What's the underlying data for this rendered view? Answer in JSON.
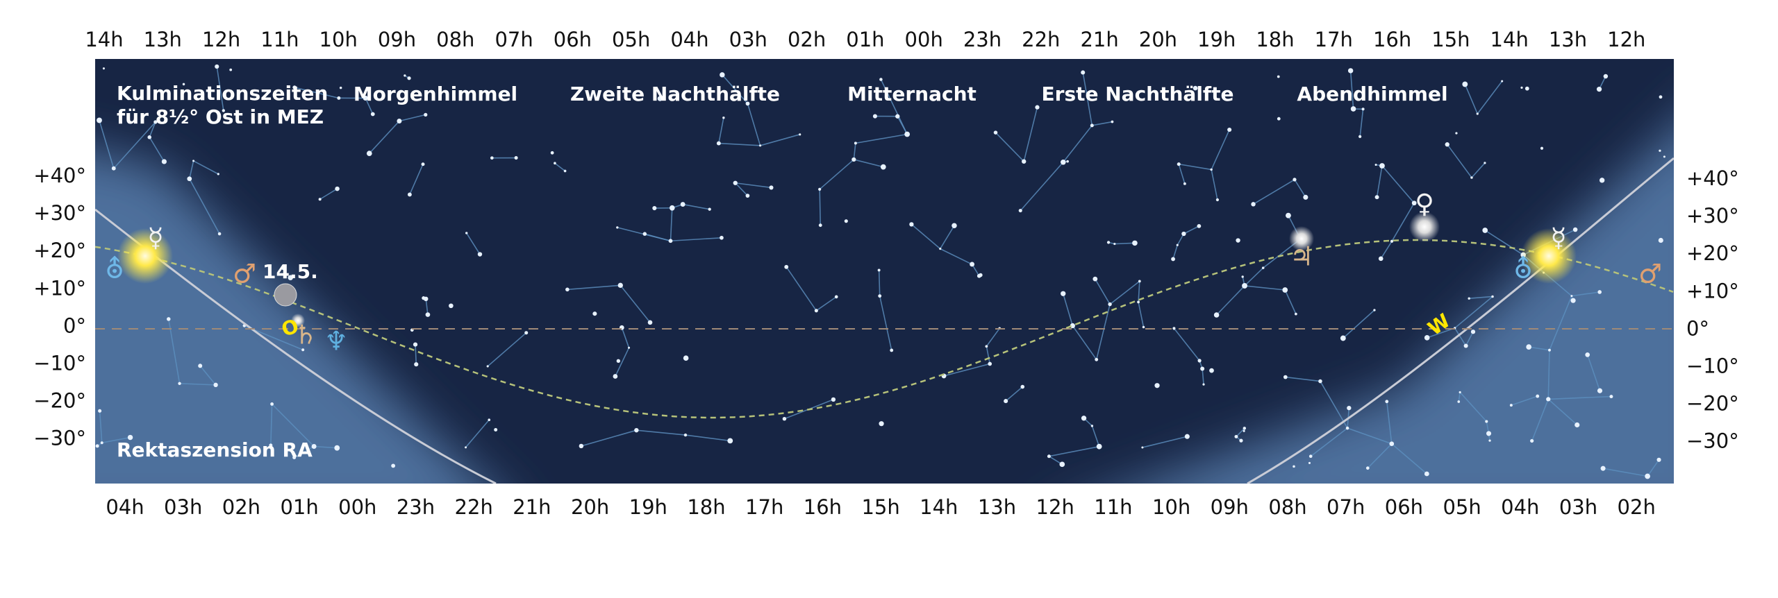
{
  "top_ticks": [
    "14h",
    "13h",
    "12h",
    "11h",
    "10h",
    "09h",
    "08h",
    "07h",
    "06h",
    "05h",
    "04h",
    "03h",
    "02h",
    "01h",
    "00h",
    "23h",
    "22h",
    "21h",
    "20h",
    "19h",
    "18h",
    "17h",
    "16h",
    "15h",
    "14h",
    "13h",
    "12h"
  ],
  "bottom_ticks": [
    "04h",
    "03h",
    "02h",
    "01h",
    "00h",
    "23h",
    "22h",
    "21h",
    "20h",
    "19h",
    "18h",
    "17h",
    "16h",
    "15h",
    "14h",
    "13h",
    "12h",
    "11h",
    "10h",
    "09h",
    "08h",
    "07h",
    "06h",
    "05h",
    "04h",
    "03h",
    "02h"
  ],
  "dec_ticks": [
    "+40°",
    "+30°",
    "+20°",
    "+10°",
    "0°",
    "−10°",
    "−20°",
    "−30°"
  ],
  "note": [
    "Kulminationszeiten",
    "für 8½° Ost in MEZ"
  ],
  "sections": [
    "Morgenhimmel",
    "Zweite Nachthälfte",
    "Mitternacht",
    "Erste Nachthälfte",
    "Abendhimmel"
  ],
  "axis_label": "Rektaszension RA",
  "moon_date": "14.5.",
  "directions": [
    "O",
    "W"
  ],
  "planets": [
    "☿",
    "♂",
    "♄",
    "♆",
    "♃",
    "♀",
    "⛢"
  ]
}
